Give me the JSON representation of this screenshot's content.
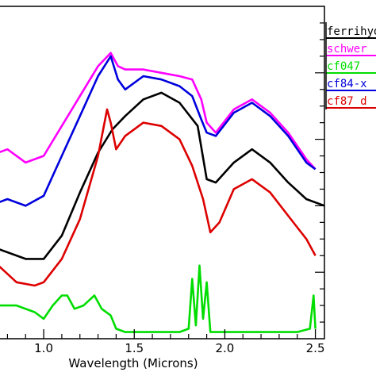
{
  "chart_data": {
    "type": "line",
    "title": "",
    "xlabel": "Wavelength (Microns)",
    "ylabel": "",
    "xlim": [
      0.75,
      2.55
    ],
    "ylim": [
      0,
      100
    ],
    "xticks": [
      1.0,
      1.5,
      2.0,
      2.5
    ],
    "xtick_labels": [
      "1.0",
      "1.5",
      "2.0",
      "2.5"
    ],
    "grid": false,
    "legend_position": "top-right",
    "series": [
      {
        "name": "ferrihy",
        "color": "#000000",
        "points": [
          [
            0.75,
            27
          ],
          [
            0.9,
            24
          ],
          [
            1.0,
            24
          ],
          [
            1.1,
            31
          ],
          [
            1.2,
            44
          ],
          [
            1.3,
            56
          ],
          [
            1.38,
            63
          ],
          [
            1.45,
            67
          ],
          [
            1.55,
            72
          ],
          [
            1.65,
            74
          ],
          [
            1.75,
            71
          ],
          [
            1.85,
            64
          ],
          [
            1.9,
            48
          ],
          [
            1.95,
            47
          ],
          [
            2.05,
            53
          ],
          [
            2.15,
            57
          ],
          [
            2.25,
            53
          ],
          [
            2.35,
            47
          ],
          [
            2.45,
            42
          ],
          [
            2.5,
            41
          ],
          [
            2.55,
            40
          ]
        ]
      },
      {
        "name": "schwer",
        "color": "#ff00ff",
        "points": [
          [
            0.75,
            56
          ],
          [
            0.8,
            57
          ],
          [
            0.9,
            53
          ],
          [
            1.0,
            55
          ],
          [
            1.1,
            64
          ],
          [
            1.2,
            73
          ],
          [
            1.3,
            82
          ],
          [
            1.37,
            86
          ],
          [
            1.41,
            82
          ],
          [
            1.45,
            81
          ],
          [
            1.55,
            81
          ],
          [
            1.65,
            80
          ],
          [
            1.75,
            79
          ],
          [
            1.82,
            78
          ],
          [
            1.87,
            72
          ],
          [
            1.9,
            65
          ],
          [
            1.95,
            62
          ],
          [
            2.05,
            69
          ],
          [
            2.15,
            72
          ],
          [
            2.25,
            68
          ],
          [
            2.35,
            62
          ],
          [
            2.45,
            54
          ],
          [
            2.5,
            51
          ]
        ]
      },
      {
        "name": "cf047",
        "color": "#00dd00",
        "points": [
          [
            0.75,
            10
          ],
          [
            0.85,
            10
          ],
          [
            0.95,
            8
          ],
          [
            1.0,
            6
          ],
          [
            1.05,
            10
          ],
          [
            1.1,
            13
          ],
          [
            1.13,
            13
          ],
          [
            1.17,
            9
          ],
          [
            1.22,
            10
          ],
          [
            1.28,
            13
          ],
          [
            1.32,
            9
          ],
          [
            1.37,
            7
          ],
          [
            1.4,
            3
          ],
          [
            1.45,
            2
          ],
          [
            1.6,
            2
          ],
          [
            1.75,
            2
          ],
          [
            1.8,
            3
          ],
          [
            1.82,
            18
          ],
          [
            1.84,
            4
          ],
          [
            1.86,
            22
          ],
          [
            1.88,
            6
          ],
          [
            1.9,
            17
          ],
          [
            1.92,
            2
          ],
          [
            2.0,
            2
          ],
          [
            2.2,
            2
          ],
          [
            2.4,
            2
          ],
          [
            2.47,
            3
          ],
          [
            2.49,
            13
          ],
          [
            2.5,
            3
          ]
        ]
      },
      {
        "name": "cf84",
        "color": "#0000dd",
        "points": [
          [
            0.75,
            41
          ],
          [
            0.8,
            42
          ],
          [
            0.9,
            40
          ],
          [
            1.0,
            43
          ],
          [
            1.1,
            55
          ],
          [
            1.2,
            67
          ],
          [
            1.3,
            79
          ],
          [
            1.37,
            85
          ],
          [
            1.41,
            78
          ],
          [
            1.45,
            75
          ],
          [
            1.55,
            79
          ],
          [
            1.65,
            78
          ],
          [
            1.75,
            76
          ],
          [
            1.82,
            73
          ],
          [
            1.87,
            66
          ],
          [
            1.9,
            62
          ],
          [
            1.95,
            61
          ],
          [
            2.05,
            68
          ],
          [
            2.15,
            71
          ],
          [
            2.25,
            67
          ],
          [
            2.35,
            61
          ],
          [
            2.45,
            53
          ],
          [
            2.5,
            51
          ]
        ]
      },
      {
        "name": "cf87",
        "color": "#dd0000",
        "points": [
          [
            0.75,
            22
          ],
          [
            0.85,
            17
          ],
          [
            0.95,
            16
          ],
          [
            1.0,
            17
          ],
          [
            1.1,
            24
          ],
          [
            1.2,
            36
          ],
          [
            1.3,
            55
          ],
          [
            1.35,
            69
          ],
          [
            1.37,
            65
          ],
          [
            1.4,
            57
          ],
          [
            1.45,
            61
          ],
          [
            1.55,
            65
          ],
          [
            1.65,
            64
          ],
          [
            1.75,
            60
          ],
          [
            1.82,
            52
          ],
          [
            1.88,
            42
          ],
          [
            1.92,
            32
          ],
          [
            1.97,
            35
          ],
          [
            2.05,
            45
          ],
          [
            2.15,
            48
          ],
          [
            2.25,
            44
          ],
          [
            2.35,
            37
          ],
          [
            2.45,
            30
          ],
          [
            2.5,
            25
          ]
        ]
      }
    ],
    "legend": {
      "entries": [
        "ferrihyd",
        "schwer",
        "cf047",
        "cf84-x",
        "cf87 d"
      ]
    }
  }
}
